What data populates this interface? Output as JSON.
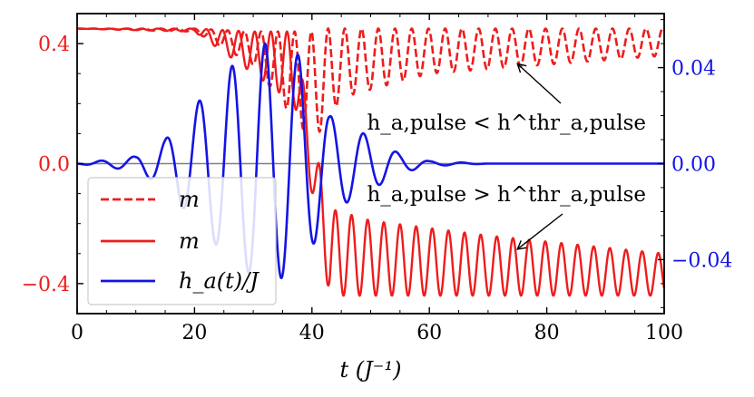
{
  "chart_data": {
    "type": "line",
    "xlabel": "t (J⁻¹)",
    "xlim": [
      0,
      100
    ],
    "x_ticks": [
      0,
      20,
      40,
      60,
      80,
      100
    ],
    "ylim_left": [
      -0.5,
      0.5
    ],
    "ylim_right": [
      -0.0625,
      0.0625
    ],
    "y_ticks_left": [
      {
        "value": 0.4,
        "label": "0.4"
      },
      {
        "value": 0.0,
        "label": "0.0"
      },
      {
        "value": -0.4,
        "label": "−0.4"
      }
    ],
    "y_ticks_right": [
      {
        "value": 0.04,
        "label": "0.04"
      },
      {
        "value": 0.0,
        "label": "0.00"
      },
      {
        "value": -0.04,
        "label": "−0.04"
      }
    ],
    "colors": {
      "magnetization": "#ee1c1c",
      "field": "#1414e6",
      "zero_line": "#808080"
    },
    "series": [
      {
        "name": "m",
        "axis": "left",
        "style": "dashed",
        "color": "#ee1c1c",
        "description_points": {
          "t": [
            0,
            20,
            30,
            35,
            40,
            42,
            45,
            60,
            100
          ],
          "envelope_top": [
            0.45,
            0.45,
            0.44,
            0.44,
            0.44,
            0.45,
            0.45,
            0.45,
            0.45
          ],
          "envelope_bottom": [
            0.45,
            0.44,
            0.33,
            0.2,
            0.08,
            0.12,
            0.22,
            0.3,
            0.36
          ]
        }
      },
      {
        "name": "m",
        "axis": "left",
        "style": "solid",
        "color": "#ee1c1c",
        "description_points": {
          "t": [
            0,
            20,
            30,
            37,
            40,
            43,
            50,
            70,
            100
          ],
          "envelope_top": [
            0.45,
            0.45,
            0.44,
            0.44,
            0.1,
            -0.15,
            -0.19,
            -0.24,
            -0.3
          ],
          "envelope_bottom": [
            0.45,
            0.44,
            0.3,
            0.2,
            -0.1,
            -0.44,
            -0.44,
            -0.44,
            -0.44
          ]
        }
      },
      {
        "name": "h_a(t)/J",
        "axis": "right",
        "style": "solid",
        "color": "#1414e6",
        "description_points": {
          "t": [
            10,
            15,
            20,
            26,
            32,
            38,
            43,
            50,
            55,
            60
          ],
          "peak_amplitude": [
            0.003,
            0.01,
            0.024,
            0.04,
            0.05,
            0.045,
            0.02,
            0.011,
            0.004,
            0.001
          ]
        }
      }
    ],
    "legend": {
      "placement": "lower-left",
      "entries": [
        "m",
        "m",
        "h_a(t)/J"
      ]
    },
    "annotations": [
      {
        "text": "h_a,pulse < h^thr_a,pulse",
        "target_t": 75,
        "target_y": 0.36
      },
      {
        "text": "h_a,pulse > h^thr_a,pulse",
        "target_t": 75,
        "target_y": -0.24
      }
    ],
    "grid": false
  }
}
